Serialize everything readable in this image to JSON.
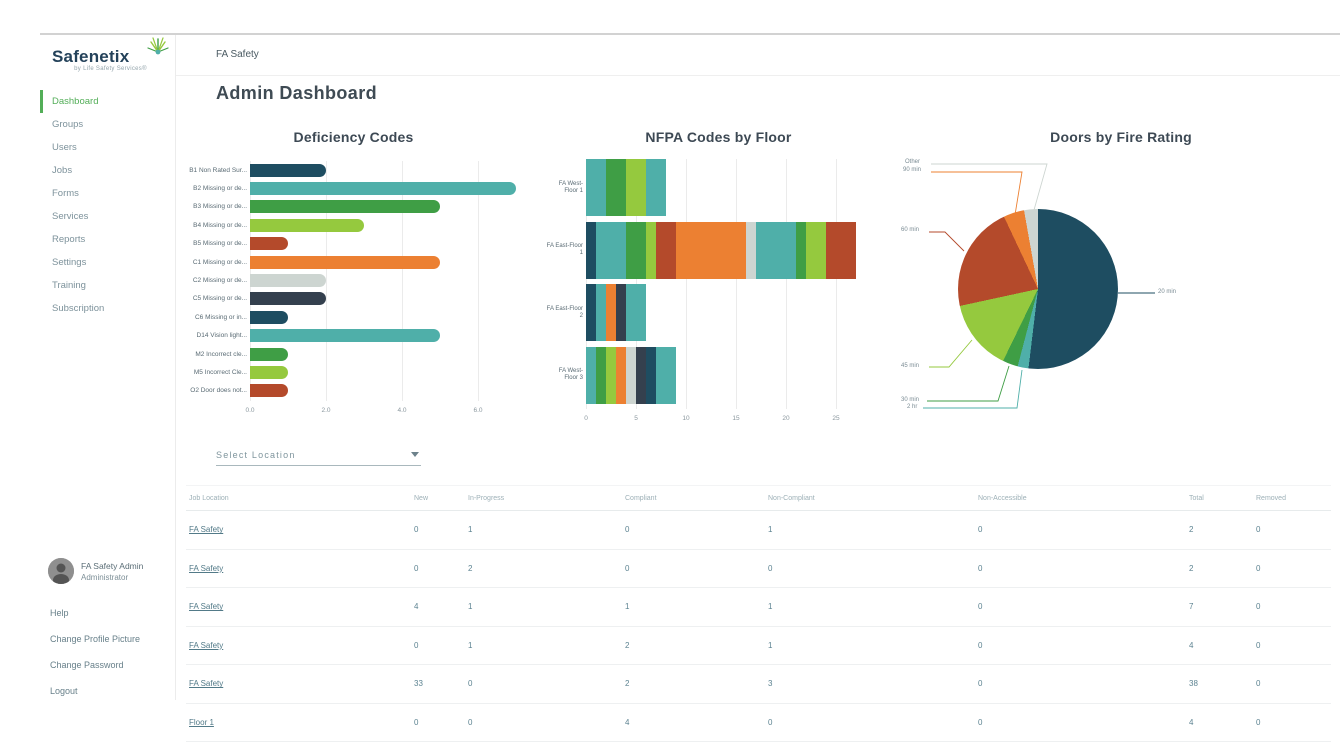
{
  "colors": {
    "accent_green": "#53ae58",
    "navy": "#1e4d61",
    "teal": "#4fafa9",
    "green": "#3f9e45",
    "lightgreen": "#95c93e",
    "rust": "#b44a2b",
    "orange": "#ec8032",
    "gray": "#cdd5d1",
    "charcoal": "#34404e"
  },
  "sidebar": {
    "logo": {
      "brand": "Safenetix",
      "tagline": "by Life Safety Services®"
    },
    "items": [
      {
        "label": "Dashboard",
        "active": true
      },
      {
        "label": "Groups"
      },
      {
        "label": "Users"
      },
      {
        "label": "Jobs"
      },
      {
        "label": "Forms"
      },
      {
        "label": "Services"
      },
      {
        "label": "Reports"
      },
      {
        "label": "Settings"
      },
      {
        "label": "Training"
      },
      {
        "label": "Subscription"
      }
    ],
    "user": {
      "name": "FA Safety Admin",
      "role": "Administrator"
    },
    "footer_items": [
      {
        "label": "Help"
      },
      {
        "label": "Change Profile Picture"
      },
      {
        "label": "Change Password"
      },
      {
        "label": "Logout"
      }
    ]
  },
  "header": {
    "org": "FA Safety",
    "title": "Admin Dashboard"
  },
  "filters": {
    "location_placeholder": "Select Location"
  },
  "chart_data": [
    {
      "type": "bar",
      "title": "Deficiency Codes",
      "orientation": "horizontal",
      "categories": [
        "B1 Non Rated Sur...",
        "B2 Missing or de...",
        "B3 Missing or de...",
        "B4 Missing or de...",
        "B5 Missing or de...",
        "C1 Missing or de...",
        "C2 Missing or de...",
        "C5 Missing or de...",
        "C6 Missing or in...",
        "D14 Vision light...",
        "M2 Incorrect cle...",
        "M5 Incorrect Cle...",
        "O2 Door does not..."
      ],
      "values": [
        2,
        7,
        5,
        3,
        1,
        5,
        2,
        2,
        1,
        5,
        1,
        1,
        1
      ],
      "colors": [
        "#1e4d61",
        "#4fafa9",
        "#3f9e45",
        "#95c93e",
        "#b44a2b",
        "#ec8032",
        "#cdd5d1",
        "#34404e",
        "#1e4d61",
        "#4fafa9",
        "#3f9e45",
        "#95c93e",
        "#b44a2b"
      ],
      "xlim": [
        0,
        7.2
      ],
      "xticks": [
        "0.0",
        "2.0",
        "4.0",
        "6.0"
      ],
      "grid": true
    },
    {
      "type": "bar-stacked",
      "title": "NFPA Codes by Floor",
      "orientation": "horizontal",
      "categories": [
        "FA West-Floor 1",
        "FA East-Floor 1",
        "FA East-Floor 2",
        "FA West-Floor 3"
      ],
      "rows": [
        [
          {
            "v": 2,
            "c": "#4fafa9"
          },
          {
            "v": 2,
            "c": "#3f9e45"
          },
          {
            "v": 2,
            "c": "#95c93e"
          },
          {
            "v": 2,
            "c": "#4fafa9"
          }
        ],
        [
          {
            "v": 1,
            "c": "#1e4d61"
          },
          {
            "v": 3,
            "c": "#4fafa9"
          },
          {
            "v": 2,
            "c": "#3f9e45"
          },
          {
            "v": 1,
            "c": "#95c93e"
          },
          {
            "v": 2,
            "c": "#b44a2b"
          },
          {
            "v": 7,
            "c": "#ec8032"
          },
          {
            "v": 1,
            "c": "#cdd5d1"
          },
          {
            "v": 4,
            "c": "#4fafa9"
          },
          {
            "v": 1,
            "c": "#3f9e45"
          },
          {
            "v": 2,
            "c": "#95c93e"
          },
          {
            "v": 3,
            "c": "#b44a2b"
          }
        ],
        [
          {
            "v": 1,
            "c": "#1e4d61"
          },
          {
            "v": 1,
            "c": "#4fafa9"
          },
          {
            "v": 1,
            "c": "#ec8032"
          },
          {
            "v": 1,
            "c": "#34404e"
          },
          {
            "v": 2,
            "c": "#4fafa9"
          }
        ],
        [
          {
            "v": 1,
            "c": "#4fafa9"
          },
          {
            "v": 1,
            "c": "#3f9e45"
          },
          {
            "v": 1,
            "c": "#95c93e"
          },
          {
            "v": 1,
            "c": "#ec8032"
          },
          {
            "v": 1,
            "c": "#cdd5d1"
          },
          {
            "v": 1,
            "c": "#34404e"
          },
          {
            "v": 1,
            "c": "#1e4d61"
          },
          {
            "v": 2,
            "c": "#4fafa9"
          }
        ]
      ],
      "totals": [
        8,
        27,
        6,
        9
      ],
      "xlim": [
        0,
        27.5
      ],
      "xticks": [
        "0",
        "5",
        "10",
        "15",
        "20",
        "25"
      ],
      "grid": true
    },
    {
      "type": "pie",
      "title": "Doors by Fire Rating",
      "slices": [
        {
          "label": "20 min",
          "pct": 51.9,
          "color": "#1e4d61"
        },
        {
          "label": "2 hr",
          "pct": 2.2,
          "color": "#4fafa9"
        },
        {
          "label": "30 min",
          "pct": 3.1,
          "color": "#3f9e45"
        },
        {
          "label": "45 min",
          "pct": 14.4,
          "color": "#95c93e"
        },
        {
          "label": "60 min",
          "pct": 21.4,
          "color": "#b44a2b"
        },
        {
          "label": "90 min",
          "pct": 4.2,
          "color": "#ec8032"
        },
        {
          "label": "Other",
          "pct": 2.8,
          "color": "#cdd5d1"
        }
      ],
      "legend_position": "callout-labels"
    }
  ],
  "table": {
    "columns": [
      "Job Location",
      "New",
      "In-Progress",
      "Compliant",
      "Non-Compliant",
      "Non-Accessible",
      "Total",
      "Removed"
    ],
    "rows": [
      {
        "location": "FA Safety",
        "values": [
          0,
          1,
          0,
          1,
          0,
          2,
          0
        ]
      },
      {
        "location": "FA Safety",
        "values": [
          0,
          2,
          0,
          0,
          0,
          2,
          0
        ]
      },
      {
        "location": "FA Safety",
        "values": [
          4,
          1,
          1,
          1,
          0,
          7,
          0
        ]
      },
      {
        "location": "FA Safety",
        "values": [
          0,
          1,
          2,
          1,
          0,
          4,
          0
        ]
      },
      {
        "location": "FA Safety",
        "values": [
          33,
          0,
          2,
          3,
          0,
          38,
          0
        ]
      },
      {
        "location": "Floor 1",
        "values": [
          0,
          0,
          4,
          0,
          0,
          4,
          0
        ]
      }
    ]
  }
}
